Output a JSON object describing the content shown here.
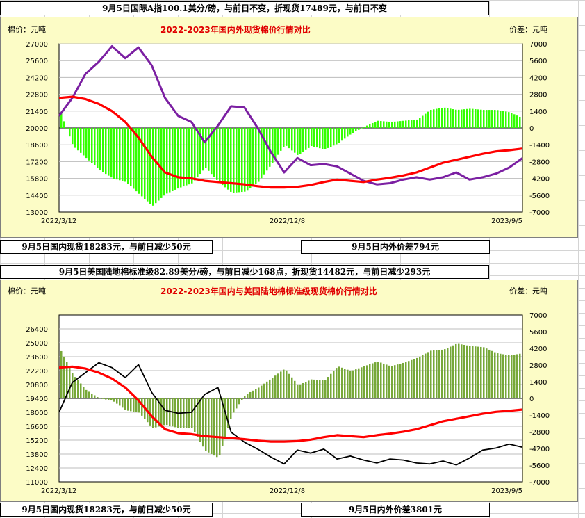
{
  "top": {
    "header_box": "9月5日国际A指100.1美分/磅，与前日不变，折现货17489元，与前日不变",
    "footer_left": "9月5日国内现货18283元，与前日减少50元",
    "footer_right": "9月5日内外价差794元"
  },
  "bottom": {
    "header_box": "9月5日美国陆地棉标准级82.89美分/磅，与前日减少168点，折现货14482元，与前日减少293元",
    "footer_left": "9月5日国内现货18283元，与前日减少50元",
    "footer_right": "9月5日内外价差3801元"
  },
  "colors": {
    "domestic": "#ff0000",
    "spread_top": "#33ff00",
    "spread_bottom": "#77a838",
    "foreign_top": "#7b1fa2",
    "foreign_bottom": "#000000",
    "panel_bg": "#fcfcc6"
  },
  "chart_data": [
    {
      "type": "line",
      "title": "2022-2023年国内外现货棉价行情对比",
      "ylabel": "棉价：元吨",
      "y2label": "价差：元吨",
      "ylim": [
        13000,
        27000
      ],
      "y_ticks": [
        13000,
        14400,
        15800,
        17200,
        18600,
        20000,
        21400,
        22800,
        24200,
        25600,
        27000
      ],
      "y2lim": [
        -7000,
        7000
      ],
      "y2_ticks": [
        -7000,
        -5600,
        -4200,
        -2800,
        -1400,
        0,
        1400,
        2800,
        4200,
        5600,
        7000
      ],
      "x_tick_labels": [
        "2022/3/12",
        "2022/12/8",
        "2023/9/5"
      ],
      "series": [
        {
          "name": "国内现货",
          "axis": "left",
          "color": "#ff0000",
          "values": [
            22500,
            22600,
            22400,
            22000,
            21400,
            20500,
            19200,
            17600,
            16300,
            15900,
            15800,
            15600,
            15500,
            15400,
            15300,
            15150,
            15050,
            15050,
            15100,
            15250,
            15500,
            15700,
            15600,
            15500,
            15700,
            15850,
            16050,
            16300,
            16700,
            17100,
            17350,
            17600,
            17850,
            18050,
            18150,
            18283
          ]
        },
        {
          "name": "国际A指折现货",
          "axis": "left",
          "color": "#7b1fa2",
          "values": [
            21000,
            22500,
            24500,
            25500,
            26800,
            25800,
            26700,
            25200,
            22500,
            21000,
            20500,
            18800,
            20200,
            21800,
            21700,
            20000,
            18000,
            16300,
            17500,
            16900,
            17000,
            16800,
            16200,
            15600,
            15300,
            15400,
            15700,
            15900,
            15700,
            15900,
            16300,
            15700,
            15900,
            16200,
            16700,
            17489
          ]
        },
        {
          "name": "内外价差",
          "axis": "right",
          "color": "#33ff00",
          "values": [
            1500,
            -1500,
            -2500,
            -3500,
            -4200,
            -4500,
            -5500,
            -6500,
            -5500,
            -5000,
            -4600,
            -3300,
            -4500,
            -5400,
            -5300,
            -4500,
            -3000,
            -1400,
            -2300,
            -1500,
            -1800,
            -1300,
            -500,
            100,
            600,
            500,
            600,
            700,
            1500,
            1700,
            1500,
            1600,
            1500,
            1500,
            1300,
            794
          ]
        }
      ]
    },
    {
      "type": "line",
      "title": "2022-2023年国内与美国陆地棉标准级现货棉价行情对比",
      "ylabel": "棉价：元吨",
      "y2label": "价差：元吨",
      "ylim": [
        11000,
        27800
      ],
      "y_ticks": [
        11000,
        12400,
        13800,
        15200,
        16600,
        18000,
        19400,
        20800,
        22200,
        23600,
        25000,
        26400
      ],
      "y2lim": [
        -7000,
        7000
      ],
      "y2_ticks": [
        -7000,
        -5600,
        -4200,
        -2800,
        -1400,
        0,
        1400,
        2800,
        4200,
        5600,
        7000
      ],
      "x_tick_labels": [
        "2022/3/12",
        "2022/12/8",
        "2023/9/5"
      ],
      "series": [
        {
          "name": "国内现货",
          "axis": "left",
          "color": "#ff0000",
          "values": [
            22500,
            22600,
            22400,
            22000,
            21400,
            20500,
            19200,
            17600,
            16300,
            15900,
            15800,
            15600,
            15500,
            15400,
            15300,
            15150,
            15050,
            15050,
            15100,
            15250,
            15500,
            15700,
            15600,
            15500,
            15700,
            15850,
            16050,
            16300,
            16700,
            17100,
            17350,
            17600,
            17850,
            18050,
            18150,
            18283
          ]
        },
        {
          "name": "美国陆地棉折现货",
          "axis": "left",
          "color": "#000000",
          "values": [
            18000,
            21000,
            22000,
            23000,
            22500,
            21500,
            22800,
            20000,
            18200,
            17900,
            18000,
            19800,
            20500,
            16000,
            15000,
            14300,
            13500,
            12800,
            14200,
            13900,
            14300,
            13300,
            13600,
            13200,
            12900,
            13300,
            13200,
            12900,
            12800,
            13100,
            12700,
            13400,
            14200,
            14400,
            14800,
            14482
          ]
        },
        {
          "name": "内外价差",
          "axis": "right",
          "color": "#77a838",
          "values": [
            4200,
            2000,
            700,
            0,
            -200,
            -1000,
            -1200,
            -2500,
            -2200,
            -2500,
            -2500,
            -4400,
            -5000,
            -1400,
            300,
            900,
            1700,
            2500,
            1100,
            1600,
            1500,
            2700,
            2300,
            2700,
            3100,
            2700,
            3000,
            3400,
            4000,
            4100,
            4600,
            4400,
            4300,
            3800,
            3600,
            3801
          ]
        }
      ]
    }
  ]
}
